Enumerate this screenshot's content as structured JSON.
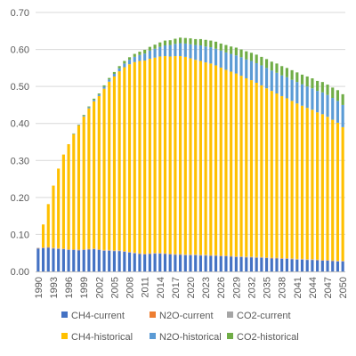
{
  "chart_data": {
    "type": "bar",
    "stacked": true,
    "title": "",
    "xlabel": "",
    "ylabel": "",
    "ylim": [
      0,
      0.7
    ],
    "yticks": [
      "0.00",
      "0.10",
      "0.20",
      "0.30",
      "0.40",
      "0.50",
      "0.60",
      "0.70"
    ],
    "grid": true,
    "legend_position": "bottom",
    "x": [
      "1990",
      "1991",
      "1992",
      "1993",
      "1994",
      "1995",
      "1996",
      "1997",
      "1998",
      "1999",
      "2000",
      "2001",
      "2002",
      "2003",
      "2004",
      "2005",
      "2006",
      "2007",
      "2008",
      "2009",
      "2010",
      "2011",
      "2012",
      "2013",
      "2014",
      "2015",
      "2016",
      "2017",
      "2018",
      "2019",
      "2020",
      "2021",
      "2022",
      "2023",
      "2024",
      "2025",
      "2026",
      "2027",
      "2028",
      "2029",
      "2030",
      "2031",
      "2032",
      "2033",
      "2034",
      "2035",
      "2036",
      "2037",
      "2038",
      "2039",
      "2040",
      "2041",
      "2042",
      "2043",
      "2044",
      "2045",
      "2046",
      "2047",
      "2048",
      "2049",
      "2050"
    ],
    "xtick_labels": [
      "1990",
      "1993",
      "1996",
      "1999",
      "2002",
      "2005",
      "2008",
      "2011",
      "2014",
      "2017",
      "2020",
      "2023",
      "2026",
      "2029",
      "2032",
      "2035",
      "2038",
      "2041",
      "2044",
      "2047",
      "2050"
    ],
    "series": [
      {
        "name": "CH4-current",
        "color": "#4472C4",
        "values": [
          0.062,
          0.063,
          0.064,
          0.062,
          0.061,
          0.06,
          0.058,
          0.058,
          0.057,
          0.058,
          0.059,
          0.06,
          0.058,
          0.056,
          0.056,
          0.055,
          0.055,
          0.053,
          0.051,
          0.049,
          0.047,
          0.046,
          0.047,
          0.048,
          0.048,
          0.047,
          0.046,
          0.045,
          0.045,
          0.044,
          0.044,
          0.044,
          0.043,
          0.043,
          0.042,
          0.042,
          0.041,
          0.041,
          0.04,
          0.039,
          0.039,
          0.038,
          0.038,
          0.037,
          0.037,
          0.036,
          0.035,
          0.035,
          0.034,
          0.034,
          0.033,
          0.032,
          0.032,
          0.031,
          0.031,
          0.03,
          0.029,
          0.029,
          0.028,
          0.027,
          0.027
        ]
      },
      {
        "name": "N2O-current",
        "color": "#ED7D31",
        "values": [
          0.001,
          0.001,
          0.001,
          0.001,
          0.001,
          0.001,
          0.001,
          0.001,
          0.001,
          0.001,
          0.001,
          0.001,
          0.001,
          0.001,
          0.001,
          0.001,
          0.001,
          0.001,
          0.001,
          0.001,
          0.001,
          0.001,
          0.001,
          0.001,
          0.001,
          0.001,
          0.001,
          0.001,
          0.001,
          0.001,
          0.001,
          0.001,
          0.001,
          0.001,
          0.001,
          0.001,
          0.001,
          0.001,
          0.001,
          0.001,
          0.001,
          0.001,
          0.001,
          0.001,
          0.001,
          0.001,
          0.001,
          0.001,
          0.001,
          0.001,
          0.001,
          0.001,
          0.001,
          0.001,
          0.001,
          0.001,
          0.001,
          0.001,
          0.001,
          0.001,
          0.001
        ]
      },
      {
        "name": "CO2-current",
        "color": "#A5A5A5",
        "values": [
          0.001,
          0.001,
          0.001,
          0.001,
          0.001,
          0.001,
          0.001,
          0.001,
          0.001,
          0.001,
          0.001,
          0.001,
          0.001,
          0.001,
          0.001,
          0.001,
          0.001,
          0.001,
          0.001,
          0.001,
          0.001,
          0.001,
          0.001,
          0.001,
          0.001,
          0.001,
          0.001,
          0.001,
          0.001,
          0.001,
          0.001,
          0.001,
          0.001,
          0.001,
          0.001,
          0.001,
          0.001,
          0.001,
          0.001,
          0.001,
          0.001,
          0.001,
          0.001,
          0.001,
          0.001,
          0.001,
          0.001,
          0.001,
          0.001,
          0.001,
          0.001,
          0.001,
          0.001,
          0.001,
          0.001,
          0.001,
          0.001,
          0.001,
          0.001,
          0.001,
          0.001
        ]
      },
      {
        "name": "CH4-historical",
        "color": "#FFC000",
        "values": [
          0.0,
          0.062,
          0.116,
          0.168,
          0.215,
          0.254,
          0.284,
          0.311,
          0.336,
          0.359,
          0.38,
          0.398,
          0.414,
          0.436,
          0.455,
          0.47,
          0.484,
          0.497,
          0.507,
          0.515,
          0.52,
          0.522,
          0.526,
          0.528,
          0.531,
          0.533,
          0.533,
          0.535,
          0.535,
          0.534,
          0.53,
          0.526,
          0.524,
          0.52,
          0.518,
          0.513,
          0.508,
          0.502,
          0.498,
          0.494,
          0.488,
          0.482,
          0.477,
          0.471,
          0.464,
          0.457,
          0.451,
          0.444,
          0.438,
          0.432,
          0.426,
          0.42,
          0.414,
          0.409,
          0.404,
          0.398,
          0.394,
          0.387,
          0.38,
          0.373,
          0.361
        ]
      },
      {
        "name": "N2O-historical",
        "color": "#5B9BD5",
        "values": [
          0.0,
          0.0,
          0.0,
          0.0,
          0.0,
          0.0,
          0.0,
          0.001,
          0.001,
          0.002,
          0.003,
          0.004,
          0.004,
          0.005,
          0.006,
          0.007,
          0.008,
          0.01,
          0.012,
          0.014,
          0.016,
          0.019,
          0.022,
          0.024,
          0.026,
          0.029,
          0.031,
          0.033,
          0.035,
          0.036,
          0.038,
          0.04,
          0.042,
          0.043,
          0.044,
          0.045,
          0.046,
          0.047,
          0.048,
          0.049,
          0.05,
          0.051,
          0.052,
          0.053,
          0.054,
          0.055,
          0.055,
          0.056,
          0.056,
          0.057,
          0.057,
          0.058,
          0.058,
          0.058,
          0.058,
          0.058,
          0.059,
          0.059,
          0.059,
          0.059,
          0.06
        ]
      },
      {
        "name": "CO2-historical",
        "color": "#70AD47",
        "values": [
          0.0,
          0.0,
          0.0,
          0.0,
          0.0,
          0.0,
          0.0,
          0.001,
          0.001,
          0.002,
          0.002,
          0.003,
          0.003,
          0.004,
          0.004,
          0.005,
          0.006,
          0.007,
          0.007,
          0.008,
          0.009,
          0.01,
          0.01,
          0.011,
          0.012,
          0.013,
          0.013,
          0.014,
          0.015,
          0.015,
          0.016,
          0.016,
          0.017,
          0.018,
          0.018,
          0.019,
          0.019,
          0.02,
          0.02,
          0.021,
          0.021,
          0.022,
          0.022,
          0.023,
          0.023,
          0.024,
          0.024,
          0.025,
          0.025,
          0.025,
          0.026,
          0.026,
          0.026,
          0.027,
          0.027,
          0.027,
          0.028,
          0.028,
          0.028,
          0.029,
          0.029
        ]
      }
    ]
  }
}
